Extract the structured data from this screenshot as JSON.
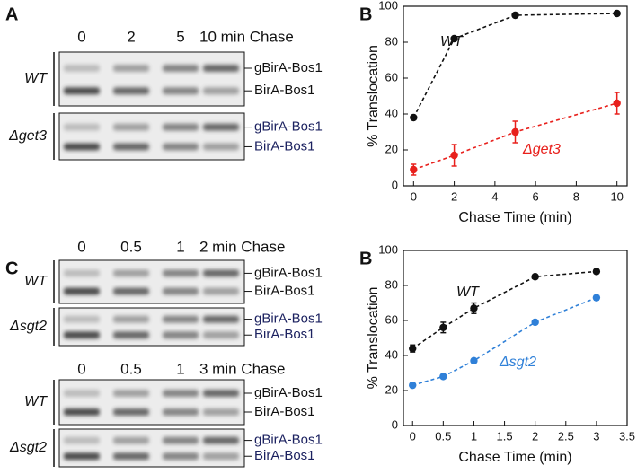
{
  "panel_A": {
    "label": "A",
    "lanes": [
      "0",
      "2",
      "5",
      "10 min Chase"
    ],
    "blots": [
      {
        "strain": "WT",
        "bands": [
          "gBirA-Bos1",
          "BirA-Bos1"
        ]
      },
      {
        "strain": "Δget3",
        "bands": [
          "gBirA-Bos1",
          "BirA-Bos1"
        ]
      }
    ]
  },
  "panel_C": {
    "label": "C",
    "sets": [
      {
        "lanes": [
          "0",
          "0.5",
          "1",
          "2 min Chase"
        ],
        "blots": [
          {
            "strain": "WT",
            "bands": [
              "gBirA-Bos1",
              "BirA-Bos1"
            ]
          },
          {
            "strain": "Δsgt2",
            "bands": [
              "gBirA-Bos1",
              "BirA-Bos1"
            ]
          }
        ]
      },
      {
        "lanes": [
          "0",
          "0.5",
          "1",
          "3 min Chase"
        ],
        "blots": [
          {
            "strain": "WT",
            "bands": [
              "gBirA-Bos1",
              "BirA-Bos1"
            ]
          },
          {
            "strain": "Δsgt2",
            "bands": [
              "gBirA-Bos1",
              "BirA-Bos1"
            ]
          }
        ]
      }
    ]
  },
  "chart_data": [
    {
      "type": "line",
      "panel_label": "B",
      "x_label": "Chase Time (min)",
      "y_label": "% Translocation",
      "x": [
        0,
        2,
        5,
        10
      ],
      "xlim": [
        -0.5,
        10.5
      ],
      "xticks": [
        0,
        2,
        4,
        6,
        8,
        10
      ],
      "ylim": [
        0,
        100
      ],
      "yticks": [
        0,
        20,
        40,
        60,
        80,
        100
      ],
      "series": [
        {
          "name": "WT",
          "color": "#111111",
          "values": [
            38,
            82,
            95,
            96
          ],
          "errors": [
            null,
            null,
            null,
            null
          ]
        },
        {
          "name": "Δget3",
          "color": "#e8201c",
          "values": [
            9,
            17,
            30,
            46
          ],
          "errors": [
            3,
            6,
            6,
            6
          ]
        }
      ]
    },
    {
      "type": "line",
      "panel_label": "B",
      "x_label": "Chase Time (min)",
      "y_label": "% Translocation",
      "x": [
        0,
        0.5,
        1,
        2,
        3
      ],
      "xlim": [
        -0.15,
        3.5
      ],
      "xticks": [
        0,
        0.5,
        1,
        1.5,
        2,
        2.5,
        3,
        3.5
      ],
      "ylim": [
        0,
        100
      ],
      "yticks": [
        0,
        20,
        40,
        60,
        80,
        100
      ],
      "series": [
        {
          "name": "WT",
          "color": "#111111",
          "values": [
            44,
            56,
            67,
            85,
            88
          ],
          "errors": [
            2,
            3,
            3,
            null,
            null
          ]
        },
        {
          "name": "Δsgt2",
          "color": "#2f80d8",
          "values": [
            23,
            28,
            37,
            59,
            73
          ],
          "errors": [
            null,
            null,
            null,
            null,
            null
          ]
        }
      ]
    }
  ]
}
